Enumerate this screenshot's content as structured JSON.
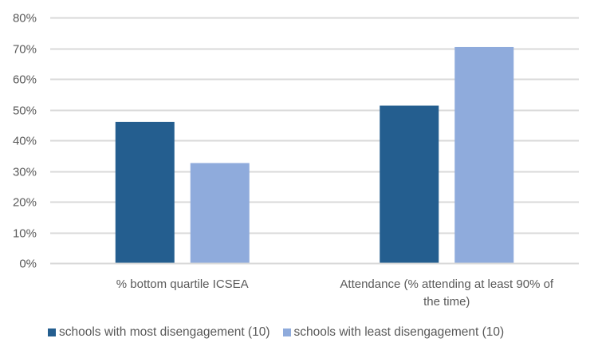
{
  "chart_data": {
    "type": "bar",
    "title": "",
    "xlabel": "",
    "ylabel": "",
    "categories": [
      [
        "% bottom quartile ICSEA"
      ],
      [
        "Attendance (% attending at least 90% of",
        "the time)"
      ]
    ],
    "category_names": [
      "% bottom quartile ICSEA",
      "Attendance (% attending at least 90% of the time)"
    ],
    "series": [
      {
        "name": "schools with most disengagement (10)",
        "color": "#245E8F",
        "values": [
          46,
          51.3
        ]
      },
      {
        "name": "schools with least disengagement (10)",
        "color": "#8FABDC",
        "values": [
          32.6,
          70.4
        ]
      }
    ],
    "ylim": [
      0,
      80
    ],
    "yticks": [
      0,
      10,
      20,
      30,
      40,
      50,
      60,
      70,
      80
    ],
    "ytick_labels": [
      "0%",
      "10%",
      "20%",
      "30%",
      "40%",
      "50%",
      "60%",
      "70%",
      "80%"
    ],
    "grid": true,
    "gridline_color": "#D9D9D9",
    "legend_position": "bottom"
  }
}
